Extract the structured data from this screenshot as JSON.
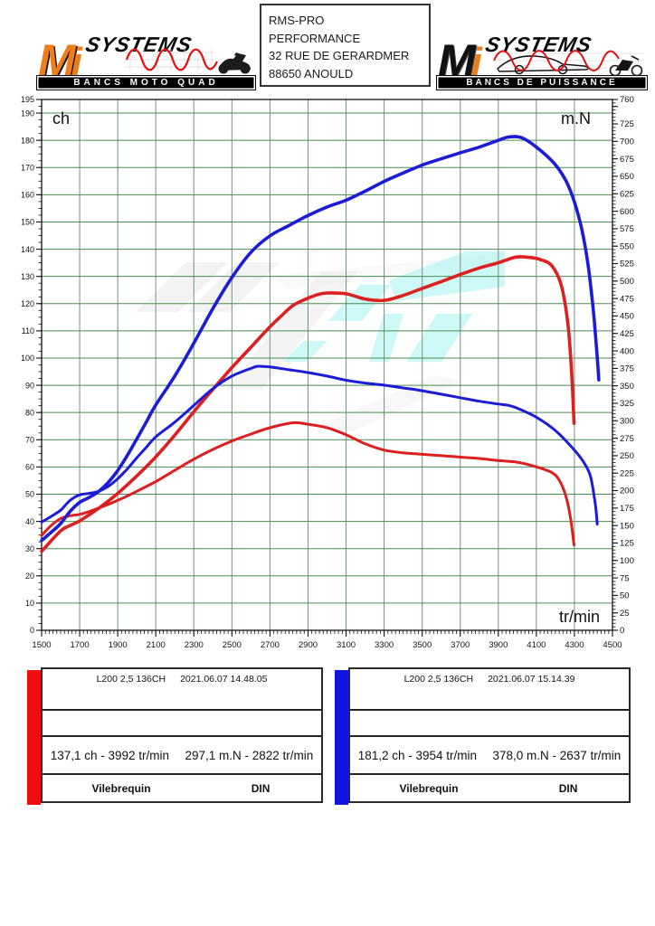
{
  "header": {
    "logo_left": {
      "m": "M",
      "i": "i",
      "rest": "SYSTEMS",
      "banner": "BANCS MOTO QUAD",
      "accent_color": "#ef7d1a"
    },
    "address_box": {
      "lines": [
        "RMS-PRO",
        "PERFORMANCE",
        "32 RUE DE GERARDMER",
        "88650 ANOULD"
      ]
    },
    "logo_right": {
      "m": "M",
      "i": "i",
      "rest": "SYSTEMS",
      "banner": "BANCS DE PUISSANCE",
      "accent_color": "#ef7d1a"
    }
  },
  "chart_data": {
    "type": "line",
    "x_axis": {
      "label": "tr/min",
      "min": 1500,
      "max": 4500,
      "major_step": 200,
      "minor_step": 20
    },
    "y_left": {
      "label": "ch",
      "min": 0,
      "max": 195,
      "major_step": 10,
      "minor_step": 2.5,
      "extra_label": 195
    },
    "y_right": {
      "label": "m.N",
      "min": 0,
      "max": 760,
      "major_step": 25,
      "minor_step": 5,
      "extra_label": 760
    },
    "grid": {
      "h_color": "#4a8c52",
      "v_color": "#78907f",
      "border_color": "#111111"
    },
    "watermark": {
      "gray": "#e9e9e9",
      "cyan": "#8ff0ee"
    },
    "series": [
      {
        "name": "torque-before",
        "axis": "right",
        "unit": "m.N",
        "color": "#dc1f1f",
        "width": 3,
        "points": [
          [
            1500,
            136
          ],
          [
            1550,
            150
          ],
          [
            1600,
            160
          ],
          [
            1650,
            164
          ],
          [
            1700,
            166
          ],
          [
            1750,
            170
          ],
          [
            1800,
            175
          ],
          [
            1900,
            186
          ],
          [
            2000,
            199
          ],
          [
            2100,
            213
          ],
          [
            2200,
            229
          ],
          [
            2300,
            245
          ],
          [
            2400,
            259
          ],
          [
            2500,
            271
          ],
          [
            2600,
            281
          ],
          [
            2700,
            290
          ],
          [
            2822,
            297.1
          ],
          [
            2900,
            295
          ],
          [
            3000,
            290
          ],
          [
            3100,
            280
          ],
          [
            3200,
            267
          ],
          [
            3300,
            258
          ],
          [
            3400,
            254
          ],
          [
            3500,
            252
          ],
          [
            3600,
            250
          ],
          [
            3700,
            248
          ],
          [
            3800,
            246
          ],
          [
            3900,
            243
          ],
          [
            3992,
            241
          ],
          [
            4100,
            234
          ],
          [
            4180,
            226
          ],
          [
            4220,
            215
          ],
          [
            4255,
            192
          ],
          [
            4280,
            160
          ],
          [
            4298,
            122
          ]
        ]
      },
      {
        "name": "power-before",
        "axis": "left",
        "unit": "ch",
        "color": "#dc1f1f",
        "width": 3.6,
        "points": [
          [
            1500,
            29
          ],
          [
            1600,
            36.5
          ],
          [
            1650,
            38.5
          ],
          [
            1700,
            40.2
          ],
          [
            1800,
            44.8
          ],
          [
            1900,
            50.3
          ],
          [
            2000,
            56.7
          ],
          [
            2100,
            63.7
          ],
          [
            2200,
            71.7
          ],
          [
            2300,
            80.3
          ],
          [
            2400,
            88.5
          ],
          [
            2500,
            96.5
          ],
          [
            2600,
            104
          ],
          [
            2700,
            111.5
          ],
          [
            2760,
            115.5
          ],
          [
            2822,
            119.4
          ],
          [
            2900,
            122
          ],
          [
            2950,
            123.3
          ],
          [
            3000,
            123.9
          ],
          [
            3100,
            123.6
          ],
          [
            3200,
            121.7
          ],
          [
            3300,
            121.2
          ],
          [
            3400,
            123
          ],
          [
            3500,
            125.6
          ],
          [
            3600,
            128.1
          ],
          [
            3700,
            130.7
          ],
          [
            3800,
            133.1
          ],
          [
            3900,
            135
          ],
          [
            3992,
            137.1
          ],
          [
            4060,
            137
          ],
          [
            4120,
            136.2
          ],
          [
            4180,
            134
          ],
          [
            4230,
            127
          ],
          [
            4265,
            113
          ],
          [
            4285,
            95
          ],
          [
            4298,
            76
          ]
        ]
      },
      {
        "name": "torque-after",
        "axis": "right",
        "unit": "m.N",
        "color": "#1c1cd6",
        "width": 3,
        "points": [
          [
            1500,
            155
          ],
          [
            1550,
            163
          ],
          [
            1600,
            172
          ],
          [
            1650,
            186
          ],
          [
            1700,
            194
          ],
          [
            1750,
            196
          ],
          [
            1800,
            199
          ],
          [
            1850,
            206
          ],
          [
            1900,
            217
          ],
          [
            1950,
            231
          ],
          [
            2000,
            247
          ],
          [
            2050,
            262
          ],
          [
            2100,
            277
          ],
          [
            2200,
            298
          ],
          [
            2300,
            322
          ],
          [
            2400,
            346
          ],
          [
            2500,
            364
          ],
          [
            2600,
            375
          ],
          [
            2637,
            378
          ],
          [
            2700,
            377
          ],
          [
            2800,
            373
          ],
          [
            2900,
            369
          ],
          [
            3000,
            364
          ],
          [
            3100,
            358
          ],
          [
            3200,
            354
          ],
          [
            3300,
            351
          ],
          [
            3400,
            347
          ],
          [
            3500,
            343
          ],
          [
            3600,
            338
          ],
          [
            3700,
            333
          ],
          [
            3800,
            328
          ],
          [
            3900,
            324
          ],
          [
            3954,
            322
          ],
          [
            4000,
            318
          ],
          [
            4100,
            305
          ],
          [
            4200,
            286
          ],
          [
            4300,
            258
          ],
          [
            4350,
            240
          ],
          [
            4385,
            220
          ],
          [
            4410,
            180
          ],
          [
            4420,
            152
          ]
        ]
      },
      {
        "name": "power-after",
        "axis": "left",
        "unit": "ch",
        "color": "#1c1cd6",
        "width": 3.6,
        "points": [
          [
            1500,
            33
          ],
          [
            1550,
            36
          ],
          [
            1600,
            39.2
          ],
          [
            1650,
            43.7
          ],
          [
            1700,
            47
          ],
          [
            1750,
            48.8
          ],
          [
            1800,
            51
          ],
          [
            1850,
            54.3
          ],
          [
            1900,
            58.7
          ],
          [
            1950,
            64.2
          ],
          [
            2000,
            70.3
          ],
          [
            2050,
            76.5
          ],
          [
            2100,
            82.8
          ],
          [
            2200,
            93.4
          ],
          [
            2300,
            105.5
          ],
          [
            2400,
            118.2
          ],
          [
            2500,
            129.6
          ],
          [
            2600,
            138.9
          ],
          [
            2700,
            144.9
          ],
          [
            2800,
            148.7
          ],
          [
            2900,
            152.4
          ],
          [
            3000,
            155.5
          ],
          [
            3100,
            158
          ],
          [
            3200,
            161.3
          ],
          [
            3300,
            164.9
          ],
          [
            3400,
            168
          ],
          [
            3500,
            170.9
          ],
          [
            3600,
            173.2
          ],
          [
            3700,
            175.4
          ],
          [
            3800,
            177.5
          ],
          [
            3900,
            180
          ],
          [
            3954,
            181.2
          ],
          [
            4020,
            181
          ],
          [
            4100,
            177.5
          ],
          [
            4200,
            171
          ],
          [
            4270,
            163
          ],
          [
            4330,
            150
          ],
          [
            4370,
            135
          ],
          [
            4400,
            117
          ],
          [
            4420,
            100
          ],
          [
            4428,
            92
          ]
        ]
      }
    ]
  },
  "legend": [
    {
      "color": "#ee0e0e",
      "model": "L200 2,5 136CH",
      "datetime": "2021.06.07 14.48.05",
      "power_peak": "137,1 ch - 3992 tr/min",
      "torque_peak": "297,1 m.N - 2822 tr/min",
      "reference": "Vilebrequin",
      "norm": "DIN"
    },
    {
      "color": "#1414e0",
      "model": "L200 2,5 136CH",
      "datetime": "2021.06.07 15.14.39",
      "power_peak": "181,2 ch - 3954 tr/min",
      "torque_peak": "378,0 m.N - 2637 tr/min",
      "reference": "Vilebrequin",
      "norm": "DIN"
    }
  ]
}
